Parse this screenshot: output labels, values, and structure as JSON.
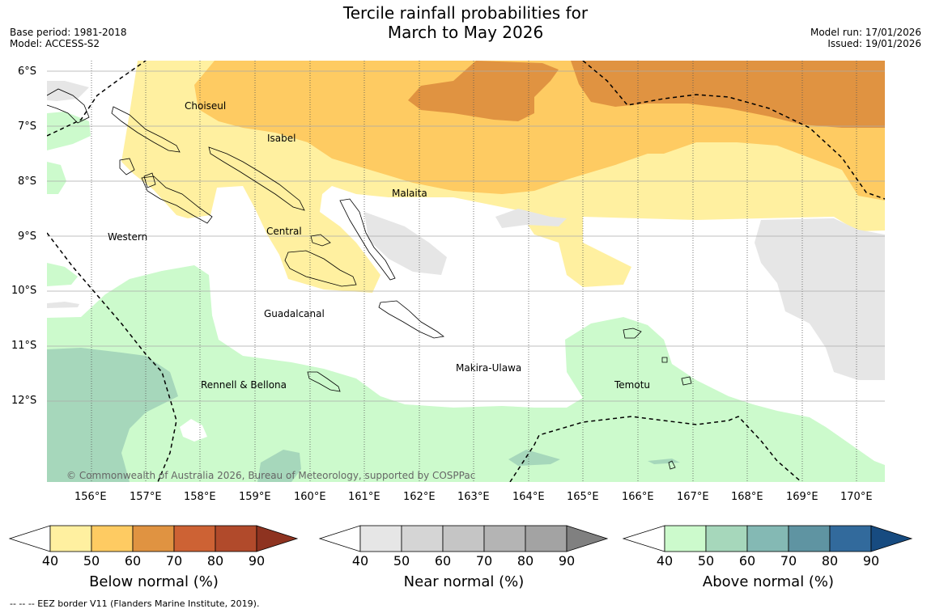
{
  "header": {
    "title_line1": "Tercile rainfall probabilities for",
    "title_line2": "March to May 2026",
    "base_period": "Base period: 1981-2018",
    "model": "Model: ACCESS-S2",
    "model_run": "Model run: 17/01/2026",
    "issued": "Issued: 19/01/2026"
  },
  "map": {
    "lat_labels": [
      "6°S",
      "7°S",
      "8°S",
      "9°S",
      "10°S",
      "11°S",
      "12°S"
    ],
    "lon_labels": [
      "156°E",
      "157°E",
      "158°E",
      "159°E",
      "160°E",
      "161°E",
      "162°E",
      "163°E",
      "164°E",
      "165°E",
      "166°E",
      "167°E",
      "168°E",
      "169°E",
      "170°E"
    ],
    "provinces": [
      "Choiseul",
      "Isabel",
      "Malaita",
      "Western",
      "Central",
      "Guadalcanal",
      "Makira-Ulawa",
      "Rennell & Bellona",
      "Temotu"
    ],
    "copyright": "© Commonwealth of Australia 2026, Bureau of Meteorology, supported by COSPPac"
  },
  "colorbars": [
    {
      "label": "Below normal (%)",
      "ticks": [
        "40",
        "50",
        "60",
        "70",
        "80",
        "90"
      ],
      "colors": [
        "#fff0a0",
        "#fecb62",
        "#e09341",
        "#cd6234",
        "#b14a2b",
        "#8e3320"
      ]
    },
    {
      "label": "Near normal (%)",
      "ticks": [
        "40",
        "50",
        "60",
        "70",
        "80",
        "90"
      ],
      "colors": [
        "#e6e6e6",
        "#d5d5d5",
        "#c5c5c5",
        "#b4b4b4",
        "#a3a3a3",
        "#808080"
      ]
    },
    {
      "label": "Above normal (%)",
      "ticks": [
        "40",
        "50",
        "60",
        "70",
        "80",
        "90"
      ],
      "colors": [
        "#ccfacc",
        "#a6d7bb",
        "#84b9b4",
        "#5f94a2",
        "#326a9c",
        "#174b80"
      ]
    }
  ],
  "footer": "--  --  -- EEZ border V11 (Flanders Marine Institute, 2019)."
}
